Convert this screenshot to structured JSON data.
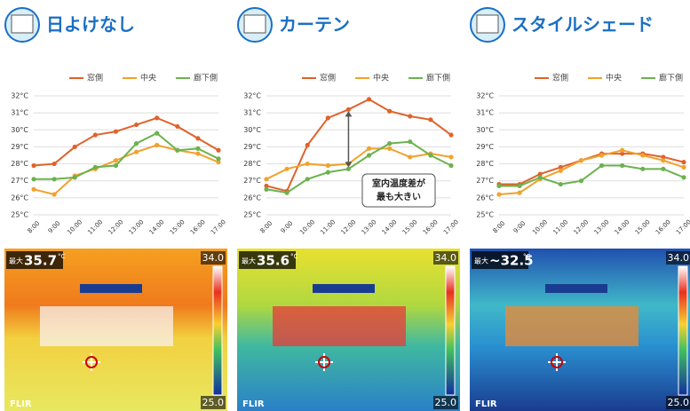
{
  "chart_data": [
    {
      "type": "line",
      "title": "日よけなし",
      "categories": [
        "8:00",
        "9:00",
        "10:00",
        "11:00",
        "12:00",
        "13:00",
        "14:00",
        "15:00",
        "16:00",
        "17:00"
      ],
      "series": [
        {
          "name": "窓側",
          "color": "#e0622a",
          "values": [
            27.9,
            28.0,
            29.0,
            29.7,
            29.9,
            30.3,
            30.7,
            30.2,
            29.5,
            28.8
          ]
        },
        {
          "name": "中央",
          "color": "#f0a22e",
          "values": [
            26.5,
            26.2,
            27.3,
            27.7,
            28.2,
            28.7,
            29.1,
            28.8,
            28.6,
            28.1
          ]
        },
        {
          "name": "廊下側",
          "color": "#6cb24e",
          "values": [
            27.1,
            27.1,
            27.2,
            27.8,
            27.9,
            29.2,
            29.8,
            28.8,
            28.9,
            28.3
          ]
        }
      ],
      "ylim": [
        25,
        32
      ],
      "yticks": [
        {
          "value": 25,
          "label": "25°C"
        },
        {
          "value": 26,
          "label": "26°C"
        },
        {
          "value": 27,
          "label": "27°C"
        },
        {
          "value": 28,
          "label": "28°C"
        },
        {
          "value": 29,
          "label": "29°C"
        },
        {
          "value": 30,
          "label": "30°C"
        },
        {
          "value": 31,
          "label": "31°C"
        },
        {
          "value": 32,
          "label": "32°C"
        }
      ],
      "grid": true
    },
    {
      "type": "line",
      "title": "カーテン",
      "categories": [
        "8:00",
        "9:00",
        "10:00",
        "11:00",
        "12:00",
        "13:00",
        "14:00",
        "15:00",
        "16:00",
        "17:00"
      ],
      "series": [
        {
          "name": "窓側",
          "color": "#e0622a",
          "values": [
            26.7,
            26.4,
            29.1,
            30.7,
            31.2,
            31.8,
            31.1,
            30.8,
            30.6,
            29.7
          ]
        },
        {
          "name": "中央",
          "color": "#f0a22e",
          "values": [
            27.1,
            27.7,
            28.0,
            27.9,
            28.0,
            28.9,
            28.9,
            28.4,
            28.6,
            28.4
          ]
        },
        {
          "name": "廊下側",
          "color": "#6cb24e",
          "values": [
            26.5,
            26.3,
            27.1,
            27.5,
            27.7,
            28.5,
            29.2,
            29.3,
            28.5,
            27.9
          ]
        }
      ],
      "ylim": [
        25,
        32
      ],
      "yticks": [
        {
          "value": 25,
          "label": "25°C"
        },
        {
          "value": 26,
          "label": "26°C"
        },
        {
          "value": 27,
          "label": "27°C"
        },
        {
          "value": 28,
          "label": "28°C"
        },
        {
          "value": 29,
          "label": "29°C"
        },
        {
          "value": 30,
          "label": "30°C"
        },
        {
          "value": 31,
          "label": "31°C"
        },
        {
          "value": 32,
          "label": "32°C"
        }
      ],
      "grid": true,
      "annotation": [
        "室内温度差が",
        "最も大きい"
      ]
    },
    {
      "type": "line",
      "title": "スタイルシェード",
      "categories": [
        "8:00",
        "9:00",
        "10:00",
        "11:00",
        "12:00",
        "13:00",
        "14:00",
        "15:00",
        "16:00",
        "17:00"
      ],
      "series": [
        {
          "name": "窓側",
          "color": "#e0622a",
          "values": [
            26.8,
            26.8,
            27.4,
            27.8,
            28.2,
            28.6,
            28.6,
            28.6,
            28.4,
            28.1
          ]
        },
        {
          "name": "中央",
          "color": "#f0a22e",
          "values": [
            26.2,
            26.3,
            27.1,
            27.6,
            28.2,
            28.5,
            28.8,
            28.5,
            28.2,
            27.8
          ]
        },
        {
          "name": "廊下側",
          "color": "#6cb24e",
          "values": [
            26.7,
            26.7,
            27.2,
            26.8,
            27.0,
            27.9,
            27.9,
            27.7,
            27.7,
            27.2
          ]
        }
      ],
      "ylim": [
        25,
        32
      ],
      "yticks": [
        {
          "value": 25,
          "label": "25°C"
        },
        {
          "value": 26,
          "label": "26°C"
        },
        {
          "value": 27,
          "label": "27°C"
        },
        {
          "value": 28,
          "label": "28°C"
        },
        {
          "value": 29,
          "label": "29°C"
        },
        {
          "value": 30,
          "label": "30°C"
        },
        {
          "value": 31,
          "label": "31°C"
        },
        {
          "value": 32,
          "label": "32°C"
        }
      ],
      "grid": true
    }
  ],
  "thermal": [
    {
      "max_label": "最大",
      "max": "35.7",
      "unit": "°C",
      "scale_top": "34.0",
      "scale_bottom": "25.0",
      "brand": "FLIR"
    },
    {
      "max_label": "最大",
      "max": "35.6",
      "unit": "°C",
      "scale_top": "34.0",
      "scale_bottom": "25.0",
      "brand": "FLIR"
    },
    {
      "max_label": "最大",
      "max": "~32.5",
      "unit": "°C",
      "scale_top": "34.0",
      "scale_bottom": "25.0",
      "brand": "FLIR"
    }
  ]
}
